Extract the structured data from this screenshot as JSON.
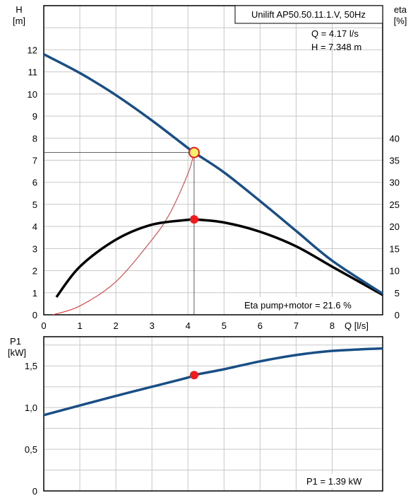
{
  "chart_data": [
    {
      "type": "line",
      "title": "Unilift AP50.50.11.1.V, 50Hz",
      "xlabel": "Q [l/s]",
      "ylabel_left": [
        "H",
        "[m]"
      ],
      "ylabel_right": [
        "eta",
        "[%]"
      ],
      "xlim": [
        0,
        9.4
      ],
      "ylim_left": [
        0,
        14
      ],
      "ylim_right": [
        0,
        70
      ],
      "x_ticks": [
        "0",
        "1",
        "2",
        "3",
        "4",
        "5",
        "6",
        "7",
        "8"
      ],
      "y_ticks_left": [
        "0",
        "1",
        "2",
        "3",
        "4",
        "5",
        "6",
        "7",
        "8",
        "9",
        "10",
        "11",
        "12"
      ],
      "y_ticks_right": [
        "0",
        "5",
        "10",
        "15",
        "20",
        "25",
        "30",
        "35",
        "40"
      ],
      "grid": true,
      "series": [
        {
          "axis": "left",
          "color": "#1a4f85",
          "x": [
            0,
            1,
            2,
            3,
            4,
            4.17,
            5,
            6,
            7,
            8,
            9.4
          ],
          "y": [
            11.8,
            10.95,
            9.95,
            8.8,
            7.55,
            7.348,
            6.45,
            5.15,
            3.8,
            2.45,
            0.95
          ]
        },
        {
          "axis": "right",
          "color": "#000000",
          "x": [
            0.35,
            1,
            2,
            3,
            4,
            4.17,
            5,
            6,
            7,
            8,
            9.4
          ],
          "y": [
            4,
            10.9,
            17,
            20.4,
            21.5,
            21.6,
            20.9,
            18.8,
            15.5,
            10.9,
            4.5
          ]
        },
        {
          "axis": "left",
          "color": "#e03030",
          "x": [
            0.25,
            1,
            2,
            3,
            3.5,
            4,
            4.17
          ],
          "y": [
            0,
            0.4,
            1.5,
            3.4,
            4.6,
            6.4,
            7.348
          ]
        }
      ],
      "operating_point": {
        "Q": 4.17,
        "H": 7.348,
        "eta": 21.6
      },
      "annotations": {
        "q_text": "Q = 4.17 l/s",
        "h_text": "H = 7.348 m",
        "eta_text": "Eta pump+motor = 21.6 %"
      }
    },
    {
      "type": "line",
      "ylabel": [
        "P1",
        "[kW]"
      ],
      "xlim": [
        0,
        9.4
      ],
      "ylim": [
        0,
        1.85
      ],
      "y_ticks": [
        "0",
        "0,5",
        "1,0",
        "1,5"
      ],
      "y_tick_values": [
        0,
        0.5,
        1.0,
        1.5
      ],
      "grid": true,
      "series": [
        {
          "color": "#1a4f85",
          "x": [
            0,
            1,
            2,
            3,
            4,
            4.17,
            5,
            6,
            7,
            8,
            9.4
          ],
          "y": [
            0.91,
            1.025,
            1.14,
            1.25,
            1.36,
            1.39,
            1.46,
            1.555,
            1.63,
            1.68,
            1.71
          ]
        }
      ],
      "operating_point": {
        "Q": 4.17,
        "P1": 1.39
      },
      "annotations": {
        "p1_text": "P1 = 1.39 kW"
      }
    }
  ]
}
